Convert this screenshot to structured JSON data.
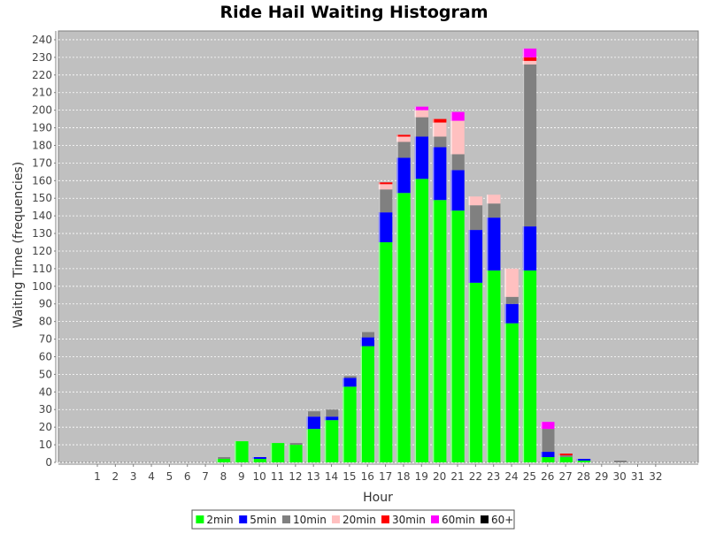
{
  "chart_data": {
    "type": "bar",
    "stacked": true,
    "title": "Ride Hail Waiting Histogram",
    "xlabel": "Hour",
    "ylabel": "Waiting Time (frequencies)",
    "ylim": [
      0,
      245
    ],
    "yticks": [
      0,
      10,
      20,
      30,
      40,
      50,
      60,
      70,
      80,
      90,
      100,
      110,
      120,
      130,
      140,
      150,
      160,
      170,
      180,
      190,
      200,
      210,
      220,
      230,
      240
    ],
    "grid": true,
    "legend_position": "bottom",
    "categories": [
      "1",
      "2",
      "3",
      "4",
      "5",
      "6",
      "7",
      "8",
      "9",
      "10",
      "11",
      "12",
      "13",
      "14",
      "15",
      "16",
      "17",
      "18",
      "19",
      "20",
      "21",
      "22",
      "23",
      "24",
      "25",
      "26",
      "27",
      "28",
      "29",
      "30",
      "31",
      "32"
    ],
    "series": [
      {
        "name": "2min",
        "color": "#00ff00",
        "values": [
          0,
          0,
          0,
          0,
          0,
          0,
          0,
          2,
          12,
          2,
          11,
          10,
          19,
          24,
          43,
          66,
          125,
          153,
          161,
          149,
          143,
          102,
          109,
          79,
          109,
          3,
          3,
          1,
          0,
          0,
          0,
          0
        ]
      },
      {
        "name": "5min",
        "color": "#0000ff",
        "values": [
          0,
          0,
          0,
          0,
          0,
          0,
          0,
          0,
          0,
          1,
          0,
          0,
          7,
          2,
          5,
          5,
          17,
          20,
          24,
          30,
          23,
          30,
          30,
          11,
          25,
          3,
          0,
          1,
          0,
          0,
          0,
          0
        ]
      },
      {
        "name": "10min",
        "color": "#808080",
        "values": [
          0,
          0,
          0,
          0,
          0,
          0,
          0,
          1,
          0,
          0,
          0,
          1,
          3,
          4,
          1,
          3,
          13,
          9,
          11,
          6,
          9,
          14,
          8,
          4,
          92,
          13,
          1,
          0,
          0,
          1,
          0,
          0
        ]
      },
      {
        "name": "20min",
        "color": "#ffc0c0",
        "values": [
          0,
          0,
          0,
          0,
          0,
          0,
          0,
          0,
          0,
          0,
          0,
          0,
          0,
          0,
          0,
          0,
          3,
          3,
          4,
          8,
          19,
          5,
          5,
          16,
          2,
          0,
          0,
          0,
          0,
          0,
          0,
          0
        ]
      },
      {
        "name": "30min",
        "color": "#ff0000",
        "values": [
          0,
          0,
          0,
          0,
          0,
          0,
          0,
          0,
          0,
          0,
          0,
          0,
          0,
          0,
          0,
          0,
          1,
          1,
          0,
          2,
          0,
          0,
          0,
          0,
          2,
          0,
          1,
          0,
          0,
          0,
          0,
          0
        ]
      },
      {
        "name": "60min",
        "color": "#ff00ff",
        "values": [
          0,
          0,
          0,
          0,
          0,
          0,
          0,
          0,
          0,
          0,
          0,
          0,
          0,
          0,
          0,
          0,
          0,
          0,
          2,
          0,
          5,
          0,
          0,
          0,
          5,
          4,
          0,
          0,
          0,
          0,
          0,
          0
        ]
      },
      {
        "name": "60+",
        "color": "#000000",
        "values": [
          0,
          0,
          0,
          0,
          0,
          0,
          0,
          0,
          0,
          0,
          0,
          0,
          0,
          0,
          0,
          0,
          0,
          0,
          0,
          0,
          0,
          0,
          0,
          0,
          0,
          0,
          0,
          0,
          0,
          0,
          0,
          0
        ]
      }
    ]
  }
}
